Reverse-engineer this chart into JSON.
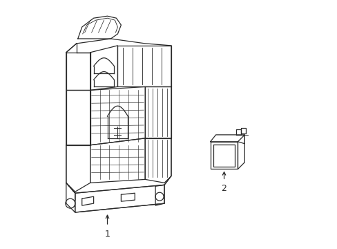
{
  "background_color": "#ffffff",
  "line_color": "#2a2a2a",
  "line_width": 0.9,
  "label1": "1",
  "label2": "2",
  "fig_width": 4.89,
  "fig_height": 3.6,
  "dpi": 100
}
